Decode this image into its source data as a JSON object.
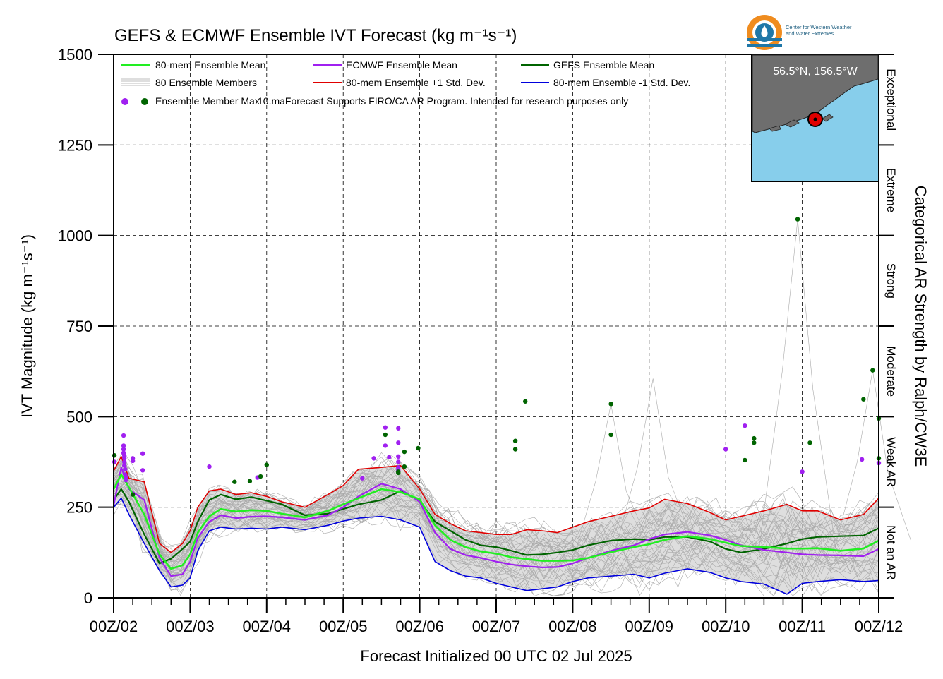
{
  "chart_data": {
    "type": "line",
    "title": "GEFS & ECMWF Ensemble IVT Forecast (kg m⁻¹s⁻¹)",
    "xlabel": "Forecast Initialized 00 UTC 02 Jul 2025",
    "ylabel": "IVT Magnitude (kg m⁻¹s⁻¹)",
    "right_label": "Categorical AR Strength by Ralph/CW3E",
    "ylim": [
      0,
      1500
    ],
    "xlim": [
      0,
      10
    ],
    "x_unit": "days",
    "grid": true,
    "yticks": [
      0,
      250,
      500,
      750,
      1000,
      1250,
      1500
    ],
    "xtick_labels": [
      "00Z/02",
      "00Z/03",
      "00Z/04",
      "00Z/05",
      "00Z/06",
      "00Z/07",
      "00Z/08",
      "00Z/09",
      "00Z/10",
      "00Z/11",
      "00Z/12"
    ],
    "categories": [
      {
        "label": "Not an AR",
        "range": [
          0,
          250
        ]
      },
      {
        "label": "Weak AR",
        "range": [
          250,
          500
        ]
      },
      {
        "label": "Moderate",
        "range": [
          500,
          750
        ]
      },
      {
        "label": "Strong",
        "range": [
          750,
          1000
        ]
      },
      {
        "label": "Extreme",
        "range": [
          1000,
          1250
        ]
      },
      {
        "label": "Exceptional",
        "range": [
          1250,
          1500
        ]
      }
    ],
    "legend": {
      "placement": "top-left",
      "entries": [
        {
          "label": "80-mem Ensemble Mean",
          "color": "#22ee22",
          "kind": "line"
        },
        {
          "label": "ECMWF Ensemble Mean",
          "color": "#a020f0",
          "kind": "line"
        },
        {
          "label": "GEFS Ensemble Mean",
          "color": "#006400",
          "kind": "line"
        },
        {
          "label": "80 Ensemble Members",
          "color": "#a9a9a9",
          "kind": "members"
        },
        {
          "label": "80-mem Ensemble +1 Std. Dev.",
          "color": "#e00000",
          "kind": "line"
        },
        {
          "label": "80-mem Ensemble -1 Std. Dev.",
          "color": "#0000dd",
          "kind": "line"
        },
        {
          "label": "Ensemble Member Max",
          "color": "#a020f0",
          "kind": "dots"
        }
      ],
      "disclaimer": "10.maForecast Supports FIRO/CA AR Program. Intended for research purposes only"
    },
    "inset": {
      "location_label": "56.5°N, 156.5°W",
      "ocean_color": "#87ceeb",
      "land_color": "#6e6e6e"
    },
    "logo_text": [
      "Center for Western Weather",
      "and Water Extremes"
    ],
    "series": [
      {
        "name": "80-mem Ensemble Mean",
        "color": "#22ee22",
        "width": 2.6,
        "x": [
          0,
          0.1,
          0.2,
          0.4,
          0.6,
          0.75,
          0.9,
          1.0,
          1.1,
          1.25,
          1.4,
          1.6,
          1.8,
          2.0,
          2.2,
          2.5,
          2.8,
          3.0,
          3.2,
          3.5,
          3.75,
          4.0,
          4.2,
          4.4,
          4.6,
          4.8,
          5.0,
          5.2,
          5.4,
          5.6,
          5.8,
          6.0,
          6.2,
          6.5,
          6.8,
          7.0,
          7.2,
          7.5,
          7.8,
          8.0,
          8.2,
          8.5,
          8.8,
          9.0,
          9.2,
          9.5,
          9.8,
          10.0
        ],
        "y": [
          300,
          340,
          305,
          230,
          120,
          80,
          90,
          120,
          180,
          225,
          245,
          238,
          242,
          240,
          232,
          222,
          240,
          258,
          275,
          300,
          292,
          272,
          200,
          160,
          140,
          128,
          122,
          112,
          107,
          102,
          102,
          103,
          110,
          126,
          140,
          148,
          160,
          170,
          162,
          152,
          143,
          140,
          136,
          136,
          137,
          130,
          136,
          158
        ]
      },
      {
        "name": "ECMWF Ensemble Mean",
        "color": "#a020f0",
        "width": 2.2,
        "x": [
          0,
          0.1,
          0.2,
          0.4,
          0.6,
          0.75,
          0.9,
          1.0,
          1.1,
          1.25,
          1.4,
          1.6,
          1.8,
          2.0,
          2.2,
          2.5,
          2.8,
          3.0,
          3.2,
          3.5,
          3.75,
          4.0,
          4.2,
          4.4,
          4.6,
          4.8,
          5.0,
          5.2,
          5.4,
          5.6,
          5.8,
          6.0,
          6.2,
          6.5,
          6.8,
          7.0,
          7.2,
          7.5,
          7.8,
          8.0,
          8.2,
          8.5,
          8.8,
          9.0,
          9.2,
          9.5,
          9.8,
          10.0
        ],
        "y": [
          255,
          360,
          300,
          270,
          110,
          60,
          65,
          100,
          165,
          210,
          228,
          220,
          224,
          225,
          222,
          215,
          228,
          250,
          280,
          315,
          300,
          265,
          180,
          135,
          118,
          110,
          100,
          92,
          87,
          84,
          85,
          95,
          110,
          130,
          145,
          162,
          175,
          182,
          172,
          160,
          145,
          132,
          125,
          120,
          118,
          117,
          115,
          135
        ]
      },
      {
        "name": "GEFS Ensemble Mean",
        "color": "#006400",
        "width": 2.2,
        "x": [
          0,
          0.1,
          0.2,
          0.4,
          0.6,
          0.75,
          0.9,
          1.0,
          1.1,
          1.25,
          1.4,
          1.6,
          1.8,
          2.0,
          2.2,
          2.5,
          2.8,
          3.0,
          3.2,
          3.5,
          3.75,
          4.0,
          4.2,
          4.4,
          4.6,
          4.8,
          5.0,
          5.2,
          5.4,
          5.6,
          5.8,
          6.0,
          6.2,
          6.5,
          6.8,
          7.0,
          7.2,
          7.5,
          7.8,
          8.0,
          8.2,
          8.5,
          8.8,
          9.0,
          9.2,
          9.5,
          9.8,
          10.0
        ],
        "y": [
          270,
          300,
          265,
          175,
          95,
          108,
          135,
          155,
          210,
          270,
          285,
          272,
          278,
          268,
          258,
          228,
          232,
          245,
          258,
          270,
          295,
          268,
          210,
          185,
          160,
          145,
          140,
          130,
          118,
          120,
          125,
          132,
          145,
          158,
          162,
          160,
          168,
          168,
          155,
          135,
          125,
          135,
          150,
          162,
          168,
          170,
          172,
          192
        ]
      },
      {
        "name": "80-mem Ensemble +1 Std. Dev.",
        "color": "#e00000",
        "width": 1.6,
        "x": [
          0,
          0.1,
          0.2,
          0.4,
          0.6,
          0.75,
          0.9,
          1.0,
          1.1,
          1.25,
          1.4,
          1.6,
          1.8,
          2.0,
          2.2,
          2.5,
          2.8,
          3.0,
          3.2,
          3.5,
          3.75,
          4.0,
          4.2,
          4.4,
          4.6,
          4.8,
          5.0,
          5.2,
          5.4,
          5.6,
          5.8,
          6.0,
          6.2,
          6.5,
          6.8,
          7.0,
          7.2,
          7.5,
          7.8,
          8.0,
          8.2,
          8.5,
          8.8,
          9.0,
          9.2,
          9.5,
          9.8,
          10.0
        ],
        "y": [
          350,
          390,
          330,
          320,
          150,
          125,
          150,
          185,
          250,
          295,
          300,
          285,
          290,
          280,
          265,
          250,
          285,
          310,
          355,
          360,
          365,
          300,
          230,
          205,
          185,
          180,
          175,
          175,
          188,
          185,
          180,
          195,
          210,
          225,
          240,
          248,
          272,
          260,
          235,
          215,
          225,
          240,
          258,
          240,
          240,
          215,
          230,
          275
        ]
      },
      {
        "name": "80-mem Ensemble -1 Std. Dev.",
        "color": "#0000dd",
        "width": 1.6,
        "x": [
          0,
          0.1,
          0.2,
          0.4,
          0.6,
          0.75,
          0.9,
          1.0,
          1.1,
          1.25,
          1.4,
          1.6,
          1.8,
          2.0,
          2.2,
          2.5,
          2.8,
          3.0,
          3.2,
          3.5,
          3.75,
          4.0,
          4.2,
          4.4,
          4.6,
          4.8,
          5.0,
          5.2,
          5.4,
          5.6,
          5.8,
          6.0,
          6.2,
          6.5,
          6.8,
          7.0,
          7.2,
          7.5,
          7.8,
          8.0,
          8.2,
          8.5,
          8.8,
          9.0,
          9.2,
          9.5,
          9.8,
          10.0
        ],
        "y": [
          250,
          275,
          230,
          150,
          75,
          30,
          35,
          55,
          130,
          185,
          195,
          190,
          192,
          190,
          195,
          188,
          200,
          212,
          220,
          225,
          215,
          195,
          100,
          75,
          60,
          55,
          40,
          30,
          20,
          25,
          30,
          45,
          55,
          60,
          65,
          55,
          68,
          80,
          70,
          55,
          45,
          38,
          10,
          40,
          45,
          50,
          45,
          48
        ]
      }
    ],
    "member_max_points": [
      {
        "model": "ECMWF",
        "color": "#a020f0",
        "x": [
          0.01,
          0.13,
          0.13,
          0.13,
          0.13,
          0.14,
          0.14,
          0.14,
          0.14,
          0.15,
          0.15,
          0.16,
          0.16,
          0.25,
          0.25,
          0.38,
          0.38,
          1.25,
          1.88,
          3.25,
          3.4,
          3.55,
          3.55,
          3.6,
          3.72,
          3.72,
          3.72,
          3.72,
          3.72,
          3.72,
          8.0,
          8.25,
          9.0,
          9.78,
          10.0
        ],
        "y": [
          375,
          448,
          420,
          410,
          400,
          392,
          385,
          375,
          365,
          355,
          340,
          332,
          325,
          385,
          378,
          398,
          352,
          362,
          332,
          330,
          385,
          470,
          420,
          388,
          468,
          428,
          390,
          375,
          360,
          352,
          410,
          475,
          348,
          382,
          372
        ]
      },
      {
        "model": "GEFS",
        "color": "#006400",
        "x": [
          0.01,
          0.25,
          1.58,
          1.78,
          1.92,
          2.0,
          3.55,
          3.72,
          3.72,
          3.8,
          3.8,
          3.98,
          5.25,
          5.25,
          5.38,
          6.5,
          6.5,
          8.25,
          8.37,
          8.37,
          8.94,
          9.1,
          9.8,
          9.92,
          10.0,
          10.0
        ],
        "y": [
          393,
          285,
          320,
          322,
          335,
          367,
          450,
          345,
          348,
          403,
          362,
          413,
          433,
          410,
          542,
          535,
          450,
          380,
          440,
          428,
          1045,
          428,
          548,
          628,
          495,
          385
        ]
      }
    ]
  }
}
